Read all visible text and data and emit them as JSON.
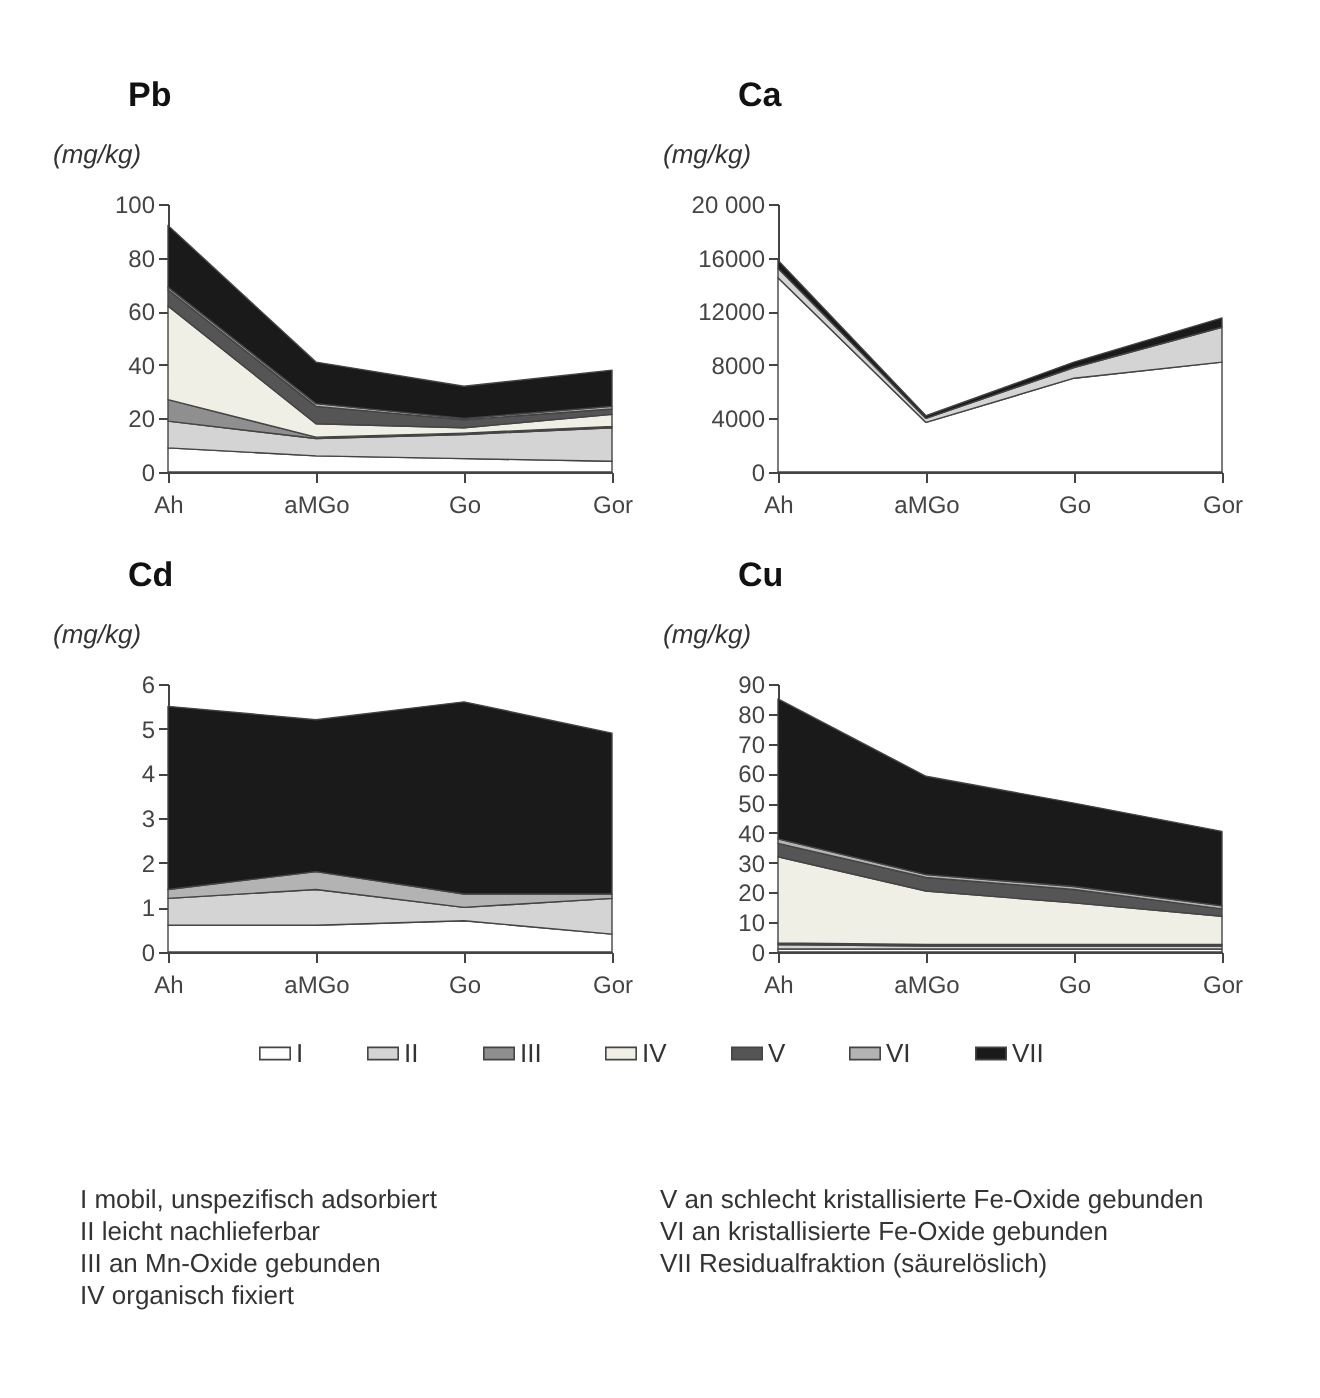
{
  "chart_data": [
    {
      "type": "area",
      "stacked": true,
      "title": "Pb",
      "ylabel": "(mg/kg)",
      "categories": [
        "Ah",
        "aMGo",
        "Go",
        "Gor"
      ],
      "ylim": [
        0,
        100
      ],
      "yticks": [
        0,
        20,
        40,
        60,
        80,
        100
      ],
      "series": [
        {
          "color": "#ffffff",
          "values": [
            9,
            6,
            5,
            4
          ]
        },
        {
          "color": "#d4d4d4",
          "values": [
            10,
            6.5,
            9,
            12.5
          ]
        },
        {
          "color": "#8f8f8f",
          "values": [
            8,
            0.5,
            0.5,
            0.5
          ]
        },
        {
          "color": "#f0efe6",
          "values": [
            35,
            5,
            2,
            4.5
          ]
        },
        {
          "color": "#555555",
          "values": [
            6,
            6.5,
            3,
            2
          ]
        },
        {
          "color": "#b3b3b3",
          "values": [
            1,
            1,
            0.5,
            1
          ]
        },
        {
          "color": "#1a1a1a",
          "values": [
            23,
            15.5,
            12,
            13.5
          ]
        }
      ]
    },
    {
      "type": "area",
      "stacked": true,
      "title": "Ca",
      "ylabel": "(mg/kg)",
      "categories": [
        "Ah",
        "aMGo",
        "Go",
        "Gor"
      ],
      "ylim": [
        0,
        20000
      ],
      "yticks": [
        0,
        4000,
        8000,
        12000,
        16000,
        {
          "value": 20000,
          "label": "20 000"
        }
      ],
      "series": [
        {
          "color": "#ffffff",
          "values": [
            14500,
            3700,
            7000,
            8200
          ]
        },
        {
          "color": "#d4d4d4",
          "values": [
            700,
            300,
            800,
            2600
          ]
        },
        {
          "color": "#1a1a1a",
          "values": [
            600,
            200,
            400,
            700
          ]
        }
      ]
    },
    {
      "type": "area",
      "stacked": true,
      "title": "Cd",
      "ylabel": "(mg/kg)",
      "categories": [
        "Ah",
        "aMGo",
        "Go",
        "Gor"
      ],
      "ylim": [
        0,
        6
      ],
      "yticks": [
        0,
        1,
        2,
        3,
        4,
        5,
        6
      ],
      "legend": "bottom",
      "series": [
        {
          "name": "I",
          "color": "#ffffff",
          "values": [
            0.6,
            0.6,
            0.7,
            0.4
          ]
        },
        {
          "name": "II",
          "color": "#d4d4d4",
          "values": [
            0.6,
            0.8,
            0.3,
            0.8
          ]
        },
        {
          "name": "III",
          "color": "#8f8f8f",
          "values": [
            null,
            null,
            null,
            null
          ]
        },
        {
          "name": "IV",
          "color": "#f0efe6",
          "values": [
            null,
            null,
            null,
            null
          ]
        },
        {
          "name": "V",
          "color": "#555555",
          "values": [
            null,
            null,
            null,
            null
          ]
        },
        {
          "name": "VI",
          "color": "#b3b3b3",
          "values": [
            0.2,
            0.4,
            0.3,
            0.1
          ]
        },
        {
          "name": "VII",
          "color": "#1a1a1a",
          "values": [
            4.1,
            3.4,
            4.3,
            3.6
          ]
        }
      ]
    },
    {
      "type": "area",
      "stacked": true,
      "title": "Cu",
      "ylabel": "(mg/kg)",
      "categories": [
        "Ah",
        "aMGo",
        "Go",
        "Gor"
      ],
      "ylim": [
        0,
        90
      ],
      "yticks": [
        0,
        10,
        20,
        30,
        40,
        50,
        60,
        70,
        80,
        90
      ],
      "series": [
        {
          "color": "#ffffff",
          "values": [
            1,
            1,
            1,
            1
          ]
        },
        {
          "color": "#d4d4d4",
          "values": [
            1.5,
            1,
            1,
            1
          ]
        },
        {
          "color": "#8f8f8f",
          "values": [
            0.5,
            0.5,
            0.5,
            0.5
          ]
        },
        {
          "color": "#f0efe6",
          "values": [
            29,
            18,
            14,
            9.5
          ]
        },
        {
          "color": "#555555",
          "values": [
            4.5,
            4.5,
            4.5,
            2.5
          ]
        },
        {
          "color": "#b3b3b3",
          "values": [
            1.5,
            1,
            1,
            1
          ]
        },
        {
          "color": "#1a1a1a",
          "values": [
            47,
            33,
            28,
            25
          ]
        }
      ],
      "annotations": [
        "I mobil, unspezifisch adsorbiert",
        "II leicht nachlieferbar",
        "III an Mn-Oxide gebunden",
        "IV organisch fixiert",
        "V an schlecht kristallisierte Fe-Oxide gebunden",
        "VI an kristallisierte Fe-Oxide gebunden",
        "VII Residualfraktion (säurelöslich)"
      ]
    }
  ]
}
